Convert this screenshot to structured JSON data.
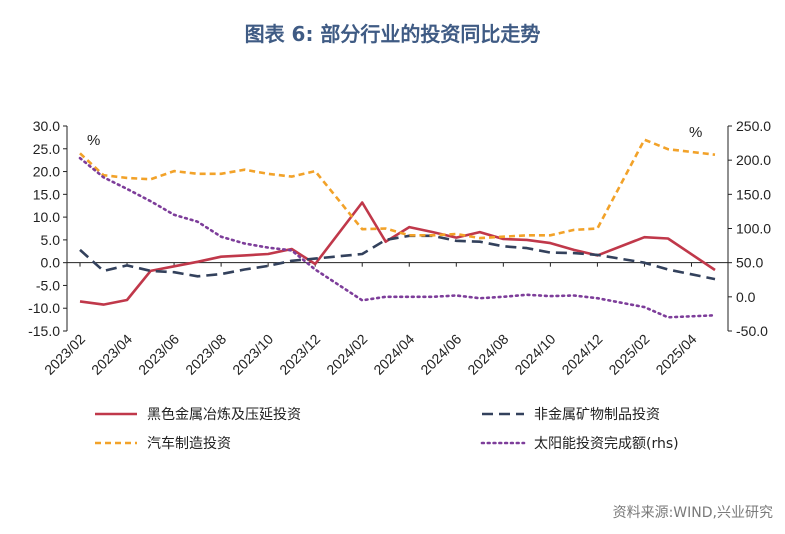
{
  "header": {
    "title": "图表 6:   部分行业的投资同比走势",
    "source": "资料来源:WIND,兴业研究"
  },
  "chart_data": {
    "type": "line",
    "left_unit": "%",
    "right_unit": "%",
    "ylim_left": [
      -15,
      30
    ],
    "ylim_right": [
      -50,
      250
    ],
    "left_ticks": [
      "30.0",
      "25.0",
      "20.0",
      "15.0",
      "10.0",
      "5.0",
      "0.0",
      "-5.0",
      "-10.0",
      "-15.0"
    ],
    "right_ticks": [
      "250.0",
      "200.0",
      "150.0",
      "100.0",
      "50.0",
      "0.0",
      "-50.0"
    ],
    "x": [
      "2023/02",
      "2023/03",
      "2023/04",
      "2023/05",
      "2023/06",
      "2023/07",
      "2023/08",
      "2023/09",
      "2023/10",
      "2023/11",
      "2023/12",
      "2024/01",
      "2024/02",
      "2024/03",
      "2024/04",
      "2024/05",
      "2024/06",
      "2024/07",
      "2024/08",
      "2024/09",
      "2024/10",
      "2024/11",
      "2024/12",
      "2025/01",
      "2025/02",
      "2025/03",
      "2025/04",
      "2025/05"
    ],
    "x_tick_labels": [
      "2023/02",
      "2023/04",
      "2023/06",
      "2023/08",
      "2023/10",
      "2023/12",
      "2024/02",
      "2024/04",
      "2024/06",
      "2024/08",
      "2024/10",
      "2024/12",
      "2025/02",
      "2025/04"
    ],
    "series": [
      {
        "name": "黑色金属冶炼及压延投资",
        "axis": "left",
        "color": "#c0384a",
        "dash": "solid",
        "values": [
          -8.5,
          -9.2,
          -8.2,
          -1.8,
          -0.8,
          0.2,
          1.3,
          1.6,
          1.9,
          3.0,
          -0.3,
          null,
          13.2,
          4.6,
          7.8,
          6.7,
          5.5,
          6.7,
          5.2,
          5.0,
          4.3,
          2.8,
          1.6,
          null,
          5.6,
          5.3,
          null,
          -1.6
        ]
      },
      {
        "name": "非金属矿物制品投资",
        "axis": "left",
        "color": "#33415c",
        "dash": "long",
        "values": [
          2.8,
          -1.8,
          -0.6,
          -1.8,
          -2.1,
          -3.0,
          -2.5,
          -1.5,
          -0.7,
          0.4,
          0.9,
          null,
          1.9,
          5.0,
          5.9,
          5.9,
          4.8,
          4.6,
          3.6,
          3.2,
          2.2,
          2.1,
          1.7,
          null,
          0.0,
          -1.5,
          null,
          -3.6
        ]
      },
      {
        "name": "汽车制造投资",
        "axis": "right",
        "color": "#f2a229",
        "dash": "short",
        "values": [
          210,
          178,
          174,
          172,
          184,
          180,
          180,
          186,
          180,
          176,
          184,
          null,
          99,
          100,
          90,
          90,
          92,
          86,
          88,
          90,
          90,
          98,
          100,
          null,
          230,
          216,
          null,
          208
        ]
      },
      {
        "name": "太阳能投资完成额(rhs)",
        "axis": "right",
        "color": "#7d3d9a",
        "dash": "dot",
        "values": [
          203,
          175,
          158,
          140,
          120,
          110,
          88,
          78,
          72,
          68,
          40,
          null,
          -5,
          0,
          0,
          0,
          2,
          -2,
          0,
          3,
          1,
          2,
          -2,
          null,
          -15,
          -30,
          null,
          -27
        ]
      }
    ]
  }
}
